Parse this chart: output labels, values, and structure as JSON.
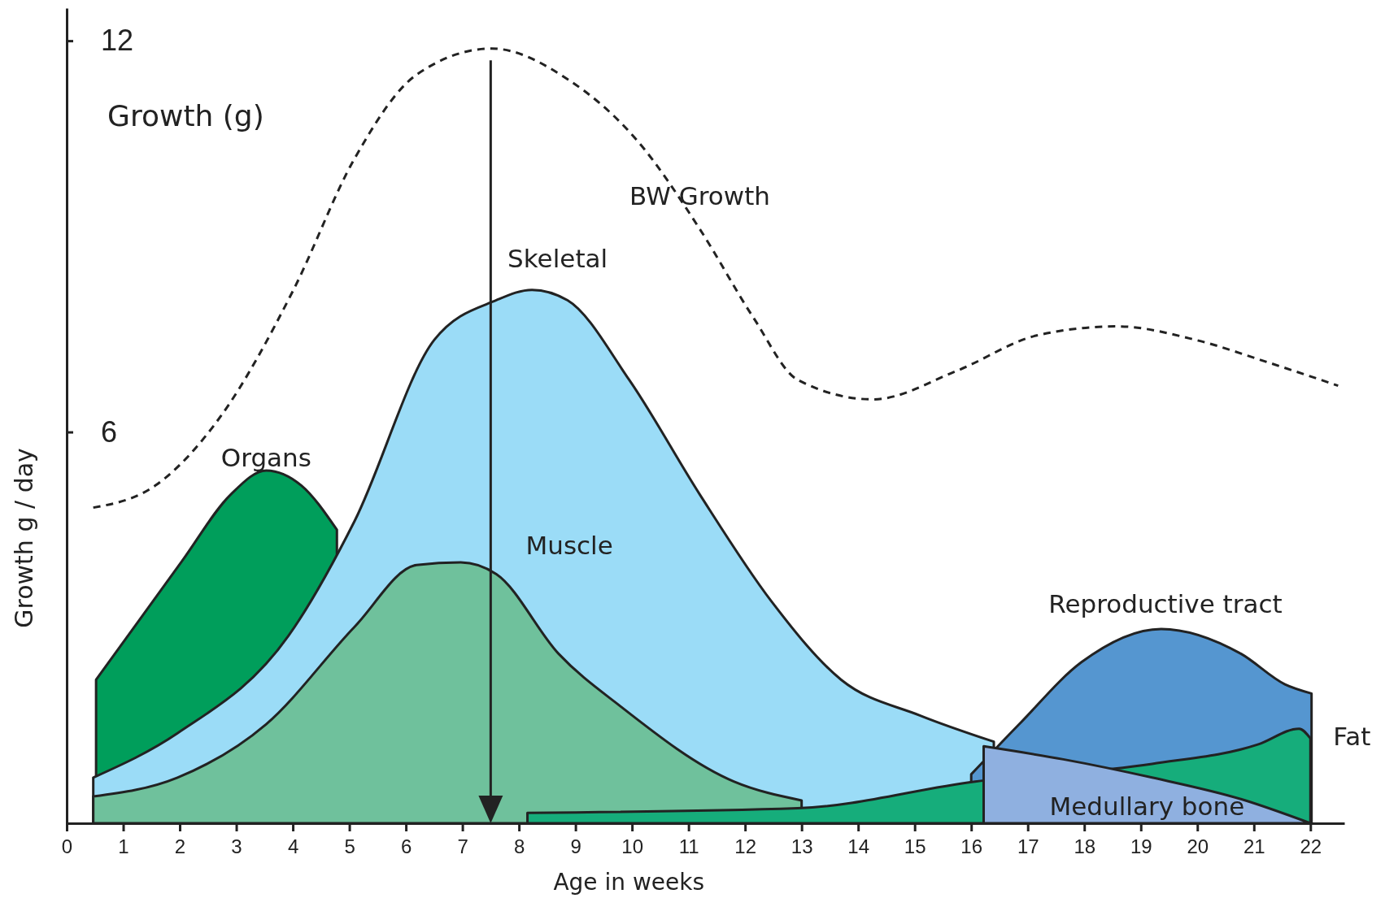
{
  "chart_data": {
    "type": "area",
    "xlabel": "Age in weeks",
    "ylabel": "Growth g / day",
    "annotations": [
      "Growth (g)"
    ],
    "xlim": [
      0,
      22.6
    ],
    "ylim": [
      0,
      12.5
    ],
    "xticks": [
      0,
      1,
      2,
      3,
      4,
      5,
      6,
      7,
      8,
      9,
      10,
      11,
      12,
      13,
      14,
      15,
      16,
      17,
      18,
      19,
      20,
      21,
      22
    ],
    "yticks": [
      6,
      12
    ],
    "marker": "none",
    "ref_lines": [
      {
        "axis": "x",
        "value": 7.5,
        "color": "#222222"
      }
    ],
    "series": [
      {
        "name": "Organs",
        "color": "#009e5b",
        "x": [
          0.52,
          2.04,
          2.9,
          3.53,
          4.15,
          4.78
        ],
        "values": [
          2.2,
          4.02,
          5.04,
          5.41,
          5.18,
          4.5
        ]
      },
      {
        "name": "Skeletal",
        "color": "#9bdcf7",
        "x": [
          0.47,
          1.96,
          3.92,
          5.09,
          6.5,
          7.6,
          8.23,
          8.86,
          9.95,
          11.2,
          12.46,
          13.7,
          15.1,
          16.4
        ],
        "values": [
          0.7,
          1.38,
          2.87,
          4.63,
          7.41,
          8.02,
          8.18,
          8.02,
          6.8,
          5.04,
          3.41,
          2.2,
          1.65,
          1.25
        ]
      },
      {
        "name": "Muscle",
        "color": "#6fc19c",
        "x": [
          0.47,
          1.96,
          3.53,
          5.09,
          6.19,
          6.97,
          7.6,
          8.7,
          9.8,
          11.8,
          13.0
        ],
        "values": [
          0.41,
          0.7,
          1.52,
          3.01,
          3.96,
          4.0,
          3.82,
          2.6,
          1.79,
          0.64,
          0.35
        ]
      },
      {
        "name": "Reproductive tract",
        "color": "#5596d0",
        "x": [
          16.0,
          16.85,
          17.95,
          19.36,
          20.77,
          21.55,
          22.02
        ],
        "values": [
          0.75,
          1.52,
          2.47,
          2.98,
          2.6,
          2.13,
          1.99
        ]
      },
      {
        "name": "Fat",
        "color": "#16ad7b",
        "x": [
          8.15,
          12.93,
          16.07,
          19.2,
          21.08,
          21.8,
          22.0
        ],
        "values": [
          0.16,
          0.23,
          0.64,
          0.91,
          1.21,
          1.45,
          1.3
        ]
      },
      {
        "name": "Medullary bone",
        "color": "#8fb0e0",
        "x": [
          16.22,
          17.63,
          19.2,
          20.77,
          22.0
        ],
        "values": [
          1.18,
          0.98,
          0.7,
          0.37,
          0
        ]
      },
      {
        "name": "BW Growth",
        "type": "line",
        "line_style": "dashed",
        "color": "#222222",
        "x": [
          0.47,
          1.57,
          2.74,
          4.0,
          5.09,
          6.19,
          7.52,
          8.86,
          10.1,
          11.2,
          12.15,
          12.93,
          14.26,
          15.75,
          17.16,
          18.57,
          19.98,
          21.24,
          22.49
        ],
        "values": [
          4.84,
          5.18,
          6.26,
          8.16,
          10.19,
          11.48,
          11.88,
          11.41,
          10.46,
          9.11,
          7.75,
          6.8,
          6.5,
          6.94,
          7.48,
          7.62,
          7.41,
          7.07,
          6.71
        ]
      }
    ]
  }
}
